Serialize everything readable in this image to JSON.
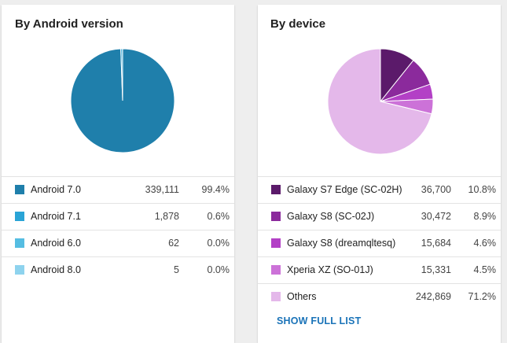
{
  "android_card": {
    "title": "By Android version",
    "rows": [
      {
        "label": "Android 7.0",
        "count": "339,111",
        "percent": "99.4%",
        "color": "#1f7fab"
      },
      {
        "label": "Android 7.1",
        "count": "1,878",
        "percent": "0.6%",
        "color": "#2aa4d6"
      },
      {
        "label": "Android 6.0",
        "count": "62",
        "percent": "0.0%",
        "color": "#55bde2"
      },
      {
        "label": "Android 8.0",
        "count": "5",
        "percent": "0.0%",
        "color": "#8ed3ee"
      }
    ]
  },
  "device_card": {
    "title": "By device",
    "rows": [
      {
        "label": "Galaxy S7 Edge (SC-02H)",
        "count": "36,700",
        "percent": "10.8%",
        "color": "#5b1a6a"
      },
      {
        "label": "Galaxy S8 (SC-02J)",
        "count": "30,472",
        "percent": "8.9%",
        "color": "#8b2a9c"
      },
      {
        "label": "Galaxy S8 (dreamqltesq)",
        "count": "15,684",
        "percent": "4.6%",
        "color": "#b340c6"
      },
      {
        "label": "Xperia XZ (SO-01J)",
        "count": "15,331",
        "percent": "4.5%",
        "color": "#cc72d8"
      },
      {
        "label": "Others",
        "count": "242,869",
        "percent": "71.2%",
        "color": "#e4b8ea"
      }
    ],
    "show_full_list": "SHOW FULL LIST"
  },
  "chart_data": [
    {
      "type": "pie",
      "title": "By Android version",
      "series": [
        {
          "values": [
            339111,
            1878,
            62,
            5
          ]
        }
      ],
      "categories": [
        "Android 7.0",
        "Android 7.1",
        "Android 6.0",
        "Android 8.0"
      ],
      "colors": [
        "#1f7fab",
        "#2aa4d6",
        "#55bde2",
        "#8ed3ee"
      ]
    },
    {
      "type": "pie",
      "title": "By device",
      "series": [
        {
          "values": [
            36700,
            30472,
            15684,
            15331,
            242869
          ]
        }
      ],
      "categories": [
        "Galaxy S7 Edge (SC-02H)",
        "Galaxy S8 (SC-02J)",
        "Galaxy S8 (dreamqltesq)",
        "Xperia XZ (SO-01J)",
        "Others"
      ],
      "colors": [
        "#5b1a6a",
        "#8b2a9c",
        "#b340c6",
        "#cc72d8",
        "#e4b8ea"
      ]
    }
  ]
}
